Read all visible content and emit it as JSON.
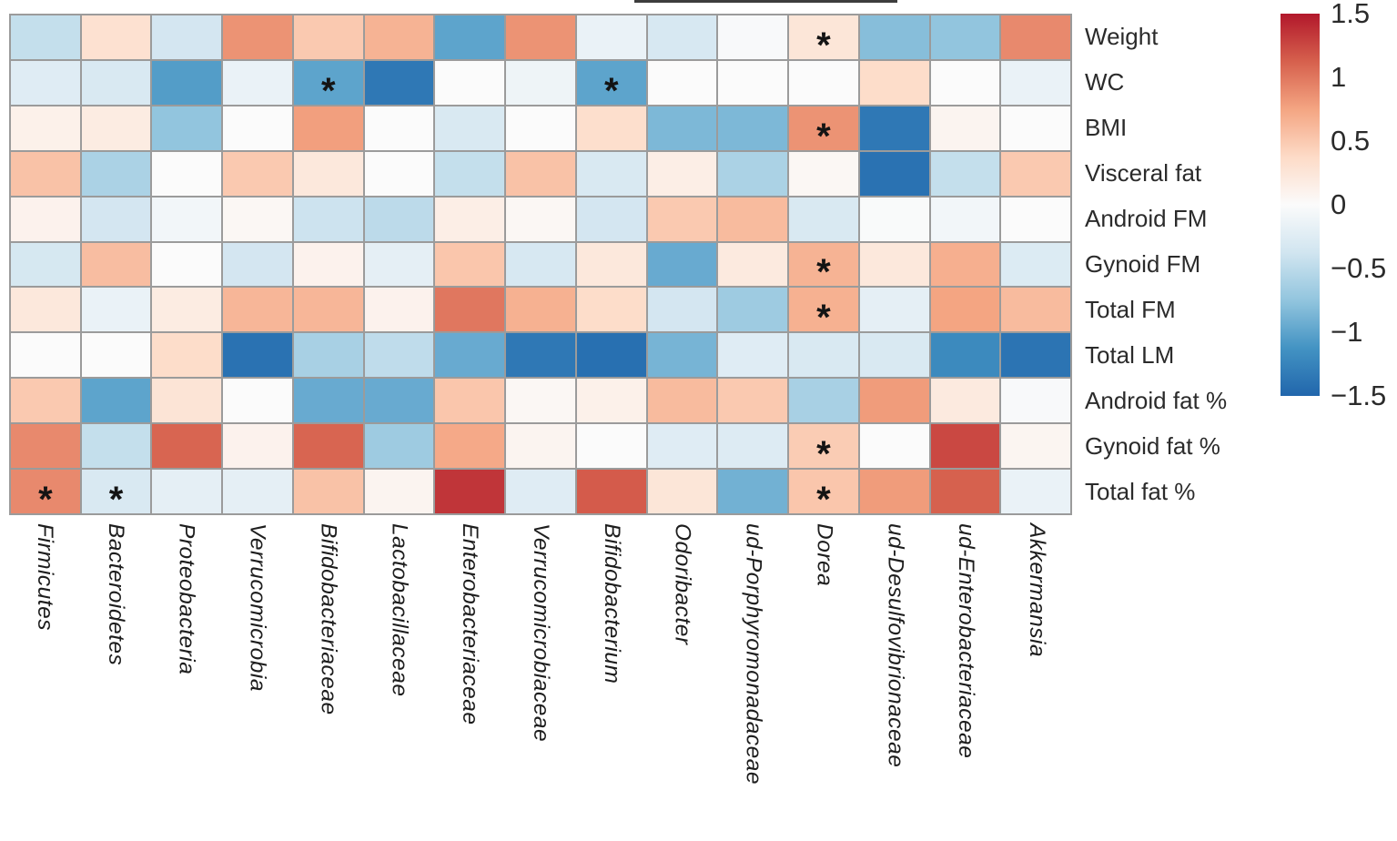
{
  "chart_data": {
    "type": "heatmap",
    "title": "",
    "xlabel": "",
    "ylabel": "",
    "rows": [
      "Weight",
      "WC",
      "BMI",
      "Visceral fat",
      "Android FM",
      "Gynoid FM",
      "Total FM",
      "Total LM",
      "Android fat %",
      "Gynoid fat %",
      "Total fat %"
    ],
    "columns": [
      "Firmicutes",
      "Bacteroidetes",
      "Proteobacteria",
      "Verrucomicrobia",
      "Bifidobacteriaceae",
      "Lactobacillaceae",
      "Enterobacteriaceae",
      "Verrucomicrobiaceae",
      "Bifidobacterium",
      "Odoribacter",
      "ud-Porphyromonadaceae",
      "Dorea",
      "ud-Desulfovibrionaceae",
      "ud-Enterobacteriaceae",
      "Akkermansia"
    ],
    "values": [
      [
        -0.45,
        0.3,
        -0.35,
        0.85,
        0.5,
        0.65,
        -1.0,
        0.85,
        -0.15,
        -0.32,
        -0.03,
        0.25,
        -0.8,
        -0.75,
        0.9
      ],
      [
        -0.25,
        -0.3,
        -1.05,
        -0.15,
        -1.0,
        -1.35,
        0.0,
        -0.12,
        -1.0,
        0.0,
        0.0,
        0.0,
        0.35,
        0.0,
        -0.15
      ],
      [
        0.12,
        0.18,
        -0.75,
        0.0,
        0.78,
        0.0,
        -0.3,
        0.0,
        0.33,
        -0.85,
        -0.85,
        0.85,
        -1.35,
        0.08,
        0.0
      ],
      [
        0.55,
        -0.6,
        0.0,
        0.5,
        0.22,
        0.0,
        -0.45,
        0.55,
        -0.3,
        0.15,
        -0.6,
        0.05,
        -1.4,
        -0.45,
        0.5
      ],
      [
        0.1,
        -0.35,
        -0.08,
        0.05,
        -0.4,
        -0.5,
        0.15,
        0.05,
        -0.35,
        0.5,
        0.6,
        -0.3,
        -0.02,
        -0.08,
        0.0
      ],
      [
        -0.33,
        0.58,
        0.0,
        -0.35,
        0.1,
        -0.2,
        0.52,
        -0.32,
        0.22,
        -0.95,
        0.2,
        0.65,
        0.22,
        0.68,
        -0.28
      ],
      [
        0.22,
        -0.15,
        0.18,
        0.63,
        0.63,
        0.1,
        1.0,
        0.67,
        0.35,
        -0.35,
        -0.68,
        0.67,
        -0.2,
        0.75,
        0.6
      ],
      [
        0.0,
        0.0,
        0.35,
        -1.4,
        -0.62,
        -0.48,
        -0.95,
        -1.35,
        -1.42,
        -0.88,
        -0.25,
        -0.3,
        -0.3,
        -1.2,
        -1.38
      ],
      [
        0.5,
        -1.0,
        0.27,
        0.0,
        -0.95,
        -0.95,
        0.52,
        0.05,
        0.12,
        0.6,
        0.5,
        -0.62,
        0.8,
        0.2,
        -0.03
      ],
      [
        0.9,
        -0.45,
        1.1,
        0.1,
        1.1,
        -0.68,
        0.72,
        0.08,
        0.0,
        -0.25,
        -0.27,
        0.48,
        0.0,
        1.25,
        0.07
      ],
      [
        0.9,
        -0.3,
        -0.2,
        -0.2,
        0.55,
        0.08,
        1.35,
        -0.25,
        1.15,
        0.25,
        -0.9,
        0.52,
        0.8,
        1.12,
        -0.15
      ]
    ],
    "significance_marker": "*",
    "significant_cells": [
      [
        0,
        11
      ],
      [
        1,
        4
      ],
      [
        1,
        8
      ],
      [
        2,
        11
      ],
      [
        5,
        11
      ],
      [
        6,
        11
      ],
      [
        9,
        11
      ],
      [
        10,
        0
      ],
      [
        10,
        1
      ],
      [
        10,
        11
      ]
    ],
    "colorbar": {
      "min": -1.5,
      "max": 1.5,
      "ticks": [
        1.5,
        1,
        0.5,
        0,
        -0.5,
        -1,
        -1.5
      ],
      "tick_labels": [
        "1.5",
        "1",
        "0.5",
        "0",
        "−0.5",
        "−1",
        "−1.5"
      ],
      "position": "right"
    },
    "colors": {
      "colormap": "RdBu_r",
      "stops": [
        "#2166ac",
        "#4393c3",
        "#92c5de",
        "#d1e5f0",
        "#fbfbfb",
        "#fddbc7",
        "#f4a582",
        "#d6604d",
        "#b2182b"
      ],
      "gridline": "#9b9b9b"
    },
    "layout": {
      "grid": "on",
      "x_tick_rotation": -90,
      "x_ticks_italic": true
    }
  }
}
